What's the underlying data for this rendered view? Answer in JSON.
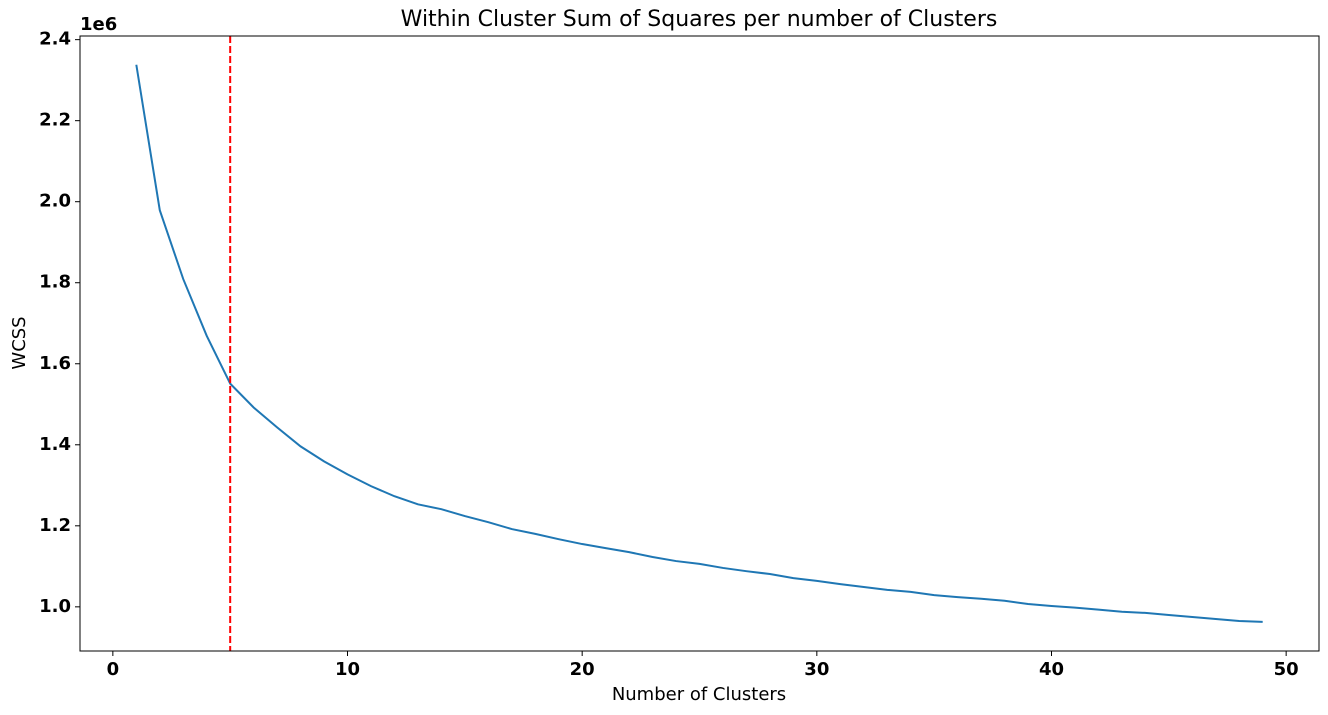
{
  "chart_data": {
    "type": "line",
    "title": "Within Cluster Sum of Squares per number of Clusters",
    "x_label": "Number of Clusters",
    "y_label": "WCSS",
    "y_offset_label": "1e6",
    "x": [
      1,
      2,
      3,
      4,
      5,
      6,
      7,
      8,
      9,
      10,
      11,
      12,
      13,
      14,
      15,
      16,
      17,
      18,
      19,
      20,
      21,
      22,
      23,
      24,
      25,
      26,
      27,
      28,
      29,
      30,
      31,
      32,
      33,
      34,
      35,
      36,
      37,
      38,
      39,
      40,
      41,
      42,
      43,
      44,
      45,
      46,
      47,
      48,
      49
    ],
    "series": [
      {
        "color": "#1f77b4",
        "values": [
          2.338,
          1.979,
          1.809,
          1.669,
          1.551,
          1.492,
          1.443,
          1.396,
          1.359,
          1.327,
          1.298,
          1.273,
          1.253,
          1.241,
          1.224,
          1.209,
          1.192,
          1.18,
          1.167,
          1.155,
          1.145,
          1.135,
          1.123,
          1.113,
          1.106,
          1.096,
          1.088,
          1.081,
          1.071,
          1.064,
          1.056,
          1.049,
          1.042,
          1.037,
          1.029,
          1.024,
          1.02,
          1.015,
          1.007,
          1.002,
          0.998,
          0.993,
          0.988,
          0.985,
          0.98,
          0.975,
          0.97,
          0.965,
          0.963
        ]
      }
    ],
    "vline": {
      "x": 5,
      "color": "#ff0000"
    },
    "xlim": [
      -1.4,
      51.4
    ],
    "ylim": [
      0.891,
      2.409
    ],
    "xticks": [
      0,
      10,
      20,
      30,
      40,
      50
    ],
    "yticks": [
      {
        "value": 1.0,
        "label": "1.0"
      },
      1.2,
      1.4,
      1.6,
      1.8,
      {
        "value": 2.0,
        "label": "2.0"
      },
      2.2,
      2.4
    ]
  }
}
